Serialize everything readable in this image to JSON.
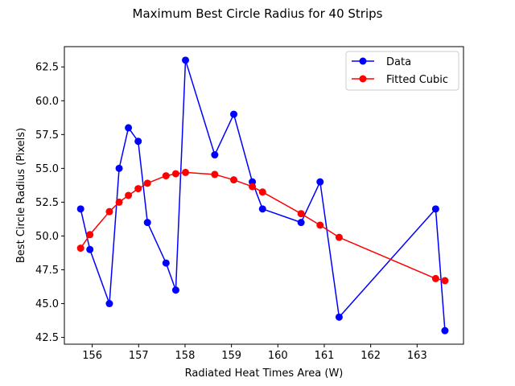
{
  "chart_data": {
    "type": "line",
    "title": "Maximum Best Circle Radius for 40 Strips",
    "xlabel": "Radiated Heat Times Area (W)",
    "ylabel": "Best Circle Radius (Pixels)",
    "xlim": [
      155.4,
      164.0
    ],
    "ylim": [
      42.0,
      64.0
    ],
    "x_ticks": [
      156,
      157,
      158,
      159,
      160,
      161,
      162,
      163
    ],
    "y_ticks": [
      42.5,
      45.0,
      47.5,
      50.0,
      52.5,
      55.0,
      57.5,
      60.0,
      62.5
    ],
    "x_tick_labels": [
      "156",
      "157",
      "158",
      "159",
      "160",
      "161",
      "162",
      "163"
    ],
    "y_tick_labels": [
      "42.5",
      "45.0",
      "47.5",
      "50.0",
      "52.5",
      "55.0",
      "57.5",
      "60.0",
      "62.5"
    ],
    "grid": false,
    "legend_position": "top-right",
    "series": [
      {
        "name": "Data",
        "color": "#0000ff",
        "marker": "circle",
        "x": [
          155.75,
          155.95,
          156.37,
          156.58,
          156.78,
          156.99,
          157.19,
          157.59,
          157.8,
          158.01,
          158.64,
          159.05,
          159.45,
          159.67,
          160.5,
          160.91,
          161.32,
          163.4,
          163.6
        ],
        "y": [
          52.0,
          49.0,
          45.0,
          55.0,
          58.0,
          57.0,
          51.0,
          48.0,
          46.0,
          63.0,
          56.0,
          59.0,
          54.0,
          52.0,
          51.0,
          54.0,
          44.0,
          52.0,
          43.0
        ]
      },
      {
        "name": "Fitted Cubic",
        "color": "#ff0000",
        "marker": "circle",
        "x": [
          155.75,
          155.95,
          156.37,
          156.58,
          156.78,
          156.99,
          157.19,
          157.59,
          157.8,
          158.01,
          158.64,
          159.05,
          159.45,
          159.67,
          160.5,
          160.91,
          161.32,
          163.4,
          163.6
        ],
        "y": [
          49.1,
          50.1,
          51.8,
          52.5,
          53.0,
          53.5,
          53.9,
          54.45,
          54.6,
          54.7,
          54.55,
          54.15,
          53.65,
          53.25,
          51.65,
          50.8,
          49.9,
          46.85,
          46.7
        ]
      }
    ]
  }
}
